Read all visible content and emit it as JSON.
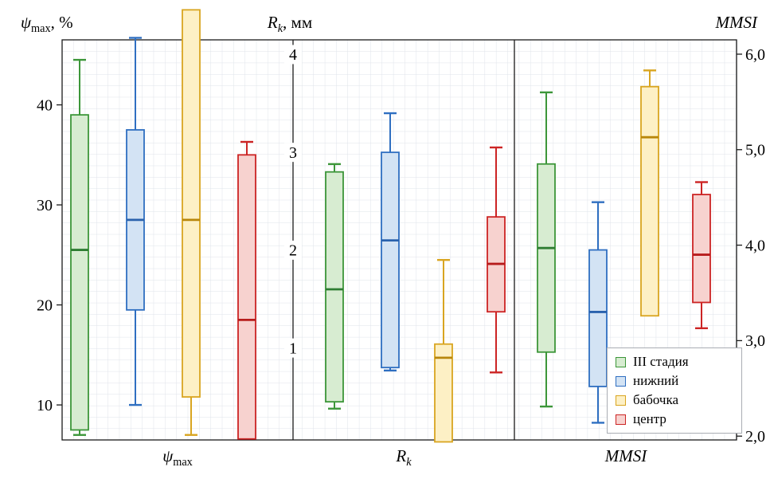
{
  "axis_titles": {
    "left": {
      "main": "ψ",
      "sub": "max",
      "suffix": ", %"
    },
    "middle": {
      "main": "R",
      "sub": "k",
      "suffix": ", мм"
    },
    "right": {
      "main": "MMSI",
      "sub": "",
      "suffix": ""
    }
  },
  "bottom_labels": {
    "first": {
      "main": "ψ",
      "sub": "max"
    },
    "second": {
      "main": "R",
      "sub": "k"
    },
    "third": {
      "main": "MMSI",
      "sub": ""
    }
  },
  "chart_data": {
    "type": "boxplot",
    "legend_position": "bottom-right",
    "grid": true,
    "grid_color": "#dfe3ea",
    "frame_color": "#1a1a1a",
    "series": [
      {
        "name": "III стадия",
        "fill": "#d7ecd1",
        "stroke": "#3c9639",
        "median": "#2e7d32"
      },
      {
        "name": "нижний",
        "fill": "#d3e3f4",
        "stroke": "#2f6fc1",
        "median": "#2a62ad"
      },
      {
        "name": "бабочка",
        "fill": "#fdf0c5",
        "stroke": "#d9a520",
        "median": "#b8860b"
      },
      {
        "name": "центр",
        "fill": "#f7d2cf",
        "stroke": "#cc2424",
        "median": "#b71c1c"
      }
    ],
    "panels": [
      {
        "name": "psi_max",
        "axis_title": "ψmax, %",
        "xlabel": "ψmax",
        "tick_side": "left",
        "tick_labels": [
          "10",
          "20",
          "30",
          "40"
        ],
        "tick_values": [
          10,
          20,
          30,
          40
        ],
        "range": [
          6.5,
          46.5
        ],
        "boxes": [
          {
            "series": "III стадия",
            "low": 7.0,
            "q1": 7.5,
            "median": 25.5,
            "q3": 39.0,
            "high": 44.5
          },
          {
            "series": "нижний",
            "low": 10.0,
            "q1": 19.5,
            "median": 28.5,
            "q3": 37.5,
            "high": 46.7
          },
          {
            "series": "бабочка",
            "low": 7.0,
            "q1": 10.8,
            "median": 28.5,
            "q3": 49.5,
            "high": null
          },
          {
            "series": "центр",
            "low": null,
            "q1": 6.6,
            "median": 18.5,
            "q3": 35.0,
            "high": 36.3
          }
        ]
      },
      {
        "name": "Rk",
        "axis_title": "Rk, мм",
        "xlabel": "Rk",
        "tick_side": "divider",
        "tick_labels": [
          "1",
          "2",
          "3",
          "4"
        ],
        "tick_values": [
          1,
          2,
          3,
          4
        ],
        "range": [
          0.06,
          4.15
        ],
        "boxes": [
          {
            "series": "III стадия",
            "low": 0.38,
            "q1": 0.45,
            "median": 1.6,
            "q3": 2.8,
            "high": 2.88
          },
          {
            "series": "нижний",
            "low": 0.77,
            "q1": 0.8,
            "median": 2.1,
            "q3": 3.0,
            "high": 3.4
          },
          {
            "series": "бабочка",
            "low": null,
            "q1": 0.04,
            "median": 0.9,
            "q3": 1.04,
            "high": 1.9
          },
          {
            "series": "центр",
            "low": 0.75,
            "q1": 1.37,
            "median": 1.86,
            "q3": 2.34,
            "high": 3.05
          }
        ]
      },
      {
        "name": "MMSI",
        "axis_title": "MMSI",
        "xlabel": "MMSI",
        "tick_side": "right",
        "tick_labels": [
          "2,0",
          "3,0",
          "4,0",
          "5,0",
          "6,0"
        ],
        "tick_values": [
          2,
          3,
          4,
          5,
          6
        ],
        "range": [
          1.96,
          6.15
        ],
        "boxes": [
          {
            "series": "III стадия",
            "low": 2.31,
            "q1": 2.88,
            "median": 3.97,
            "q3": 4.85,
            "high": 5.6
          },
          {
            "series": "нижний",
            "low": 2.14,
            "q1": 2.52,
            "median": 3.3,
            "q3": 3.95,
            "high": 4.45
          },
          {
            "series": "бабочка",
            "low": null,
            "q1": 3.26,
            "median": 5.13,
            "q3": 5.66,
            "high": 5.83
          },
          {
            "series": "центр",
            "low": 3.13,
            "q1": 3.4,
            "median": 3.9,
            "q3": 4.53,
            "high": 4.66
          }
        ]
      }
    ]
  }
}
